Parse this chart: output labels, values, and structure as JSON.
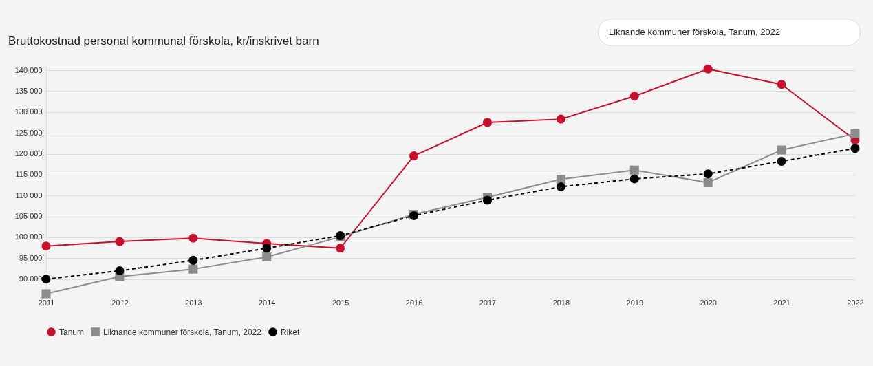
{
  "chart_data": {
    "type": "line",
    "title": "Bruttokostnad personal kommunal förskola, kr/inskrivet barn",
    "annotations": [
      "Liknande kommuner förskola, Tanum, 2022"
    ],
    "categories": [
      "2011",
      "2012",
      "2013",
      "2014",
      "2015",
      "2016",
      "2017",
      "2018",
      "2019",
      "2020",
      "2021",
      "2022"
    ],
    "series": [
      {
        "name": "Tanum",
        "color": "#c8102e",
        "marker": "circle",
        "line_style": "solid",
        "values": [
          97900,
          99000,
          99800,
          98500,
          97400,
          119500,
          127500,
          128300,
          133800,
          140300,
          136600,
          123300
        ]
      },
      {
        "name": "Liknande kommuner förskola, Tanum, 2022",
        "color": "#8c8c8c",
        "marker": "square",
        "line_style": "solid",
        "values": [
          86500,
          90600,
          92400,
          95300,
          100100,
          105500,
          109600,
          113900,
          116100,
          113100,
          120900,
          124800
        ]
      },
      {
        "name": "Riket",
        "color": "#000000",
        "marker": "circle",
        "line_style": "dashed",
        "values": [
          90000,
          92000,
          94500,
          97400,
          100400,
          105200,
          108900,
          112100,
          114000,
          115200,
          118200,
          121300
        ]
      }
    ],
    "ylim": [
      86000,
      141000
    ],
    "yticks": [
      {
        "value": 90000,
        "label": "90 000"
      },
      {
        "value": 95000,
        "label": "95 000"
      },
      {
        "value": 100000,
        "label": "100 000"
      },
      {
        "value": 105000,
        "label": "105 000"
      },
      {
        "value": 110000,
        "label": "110 000"
      },
      {
        "value": 115000,
        "label": "115 000"
      },
      {
        "value": 120000,
        "label": "120 000"
      },
      {
        "value": 125000,
        "label": "125 000"
      },
      {
        "value": 130000,
        "label": "130 000"
      },
      {
        "value": 135000,
        "label": "135 000"
      },
      {
        "value": 140000,
        "label": "140 000"
      }
    ],
    "grid": "y",
    "legend": "bottom"
  }
}
